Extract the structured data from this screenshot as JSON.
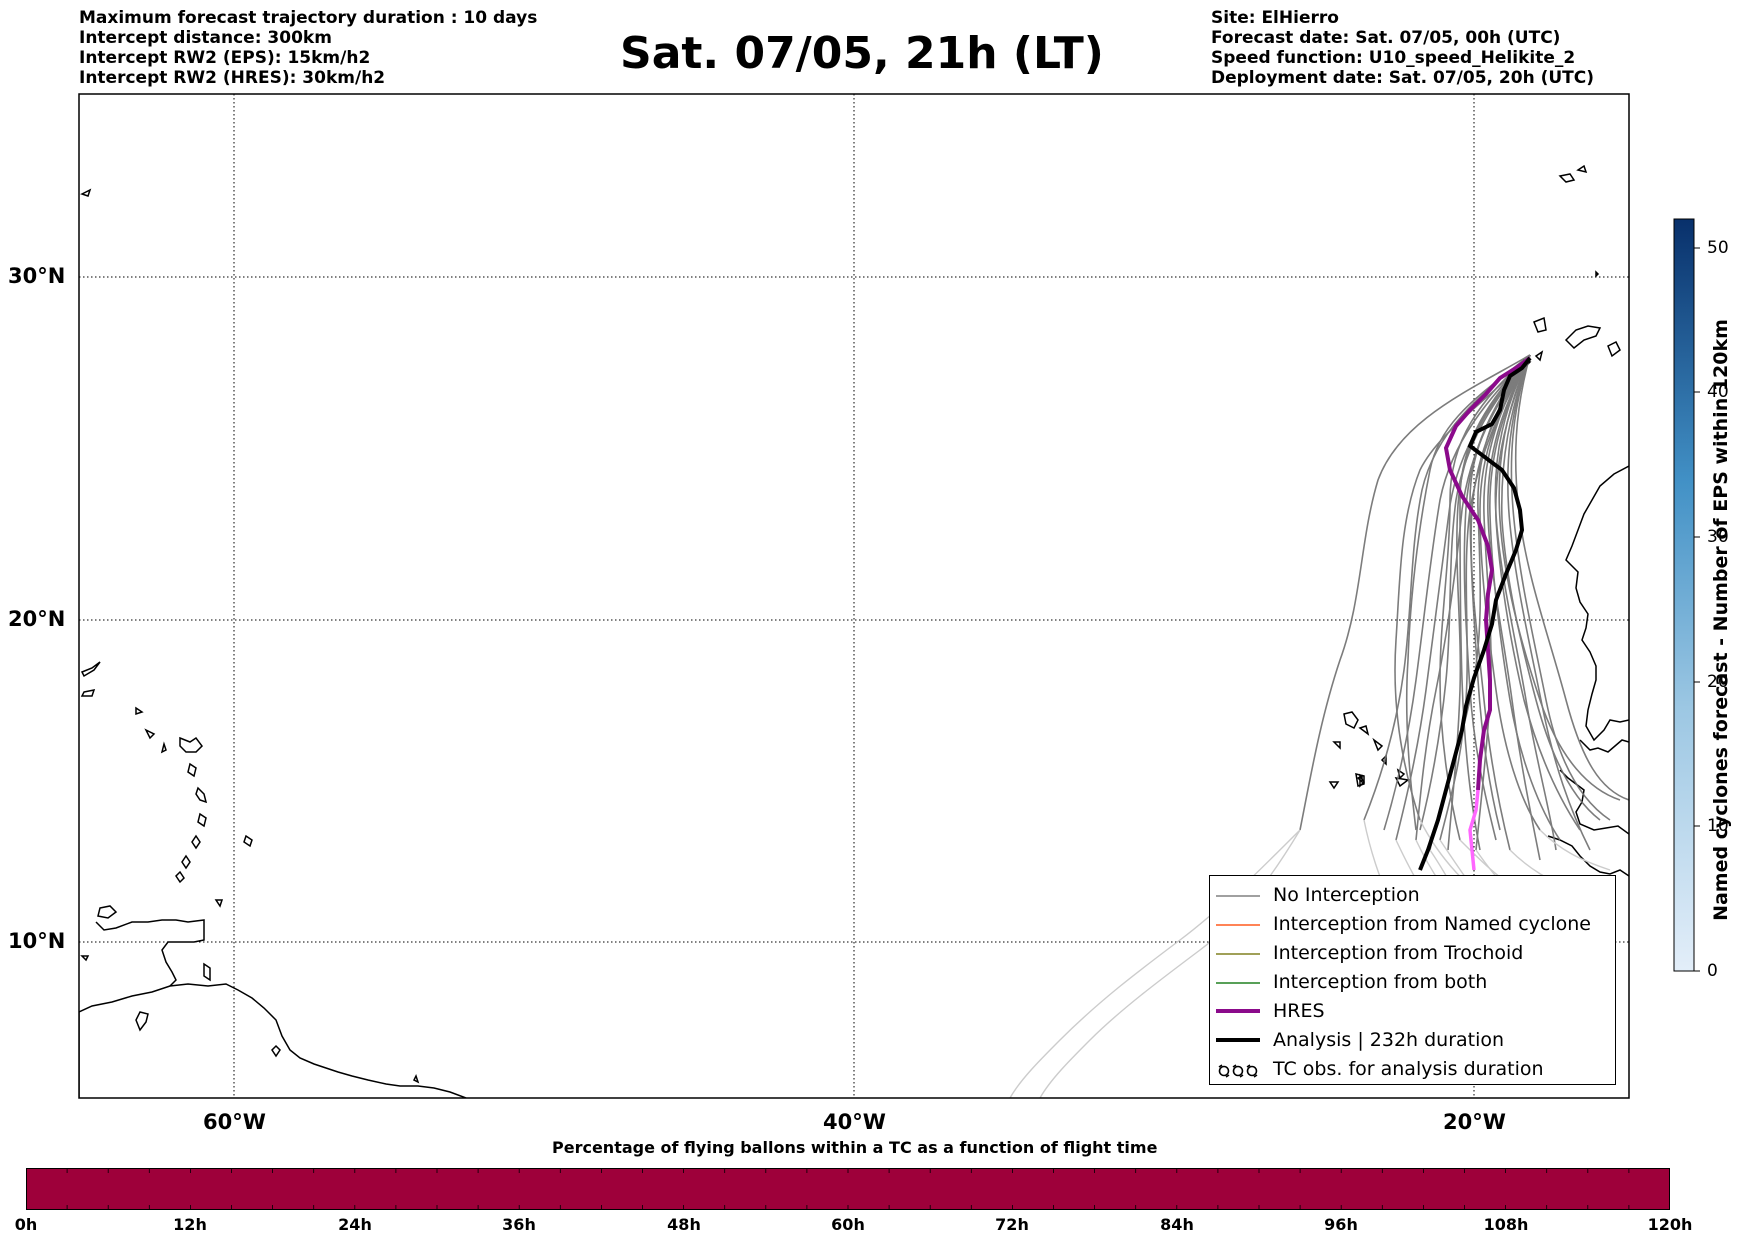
{
  "header_left": [
    "Maximum forecast trajectory duration : 10 days",
    "Intercept distance: 300km",
    "Intercept RW2 (EPS):  15km/h2",
    "Intercept RW2 (HRES): 30km/h2"
  ],
  "title": "Sat. 07/05, 21h (LT)",
  "header_right": [
    "Site: ElHierro",
    "Forecast date: Sat. 07/05, 00h (UTC)",
    "Speed function: U10_speed_Helikite_2",
    "Deployment date: Sat. 07/05, 20h (UTC)"
  ],
  "map": {
    "lat_labels": [
      "30°N",
      "20°N",
      "10°N"
    ],
    "lon_labels": [
      "60°W",
      "40°W",
      "20°W"
    ]
  },
  "legend": {
    "items": [
      {
        "label": "No Interception",
        "color": "#808080"
      },
      {
        "label": "Interception from Named cyclone",
        "color": "#ff5a1e"
      },
      {
        "label": "Interception from Trochoid",
        "color": "#808020"
      },
      {
        "label": "Interception from both",
        "color": "#208020"
      },
      {
        "label": "HRES",
        "color": "#8b0a8b"
      },
      {
        "label": "Analysis | 232h duration",
        "color": "#000000"
      },
      {
        "label": "TC obs. for analysis duration",
        "icon": "cyclone-symbol-icon"
      }
    ]
  },
  "colorbar": {
    "label": "Named cyclones forecast - Number of EPS within 120km",
    "ticks": [
      "0",
      "10",
      "20",
      "30",
      "40",
      "50"
    ],
    "min": 0,
    "max": 52,
    "colors": [
      "#e3eef9",
      "#08306b"
    ]
  },
  "progress": {
    "title": "Percentage of flying ballons within a TC as a function of flight time",
    "ticks": [
      "0h",
      "12h",
      "24h",
      "36h",
      "48h",
      "60h",
      "72h",
      "84h",
      "96h",
      "108h",
      "120h"
    ],
    "color": "#9e003a"
  }
}
